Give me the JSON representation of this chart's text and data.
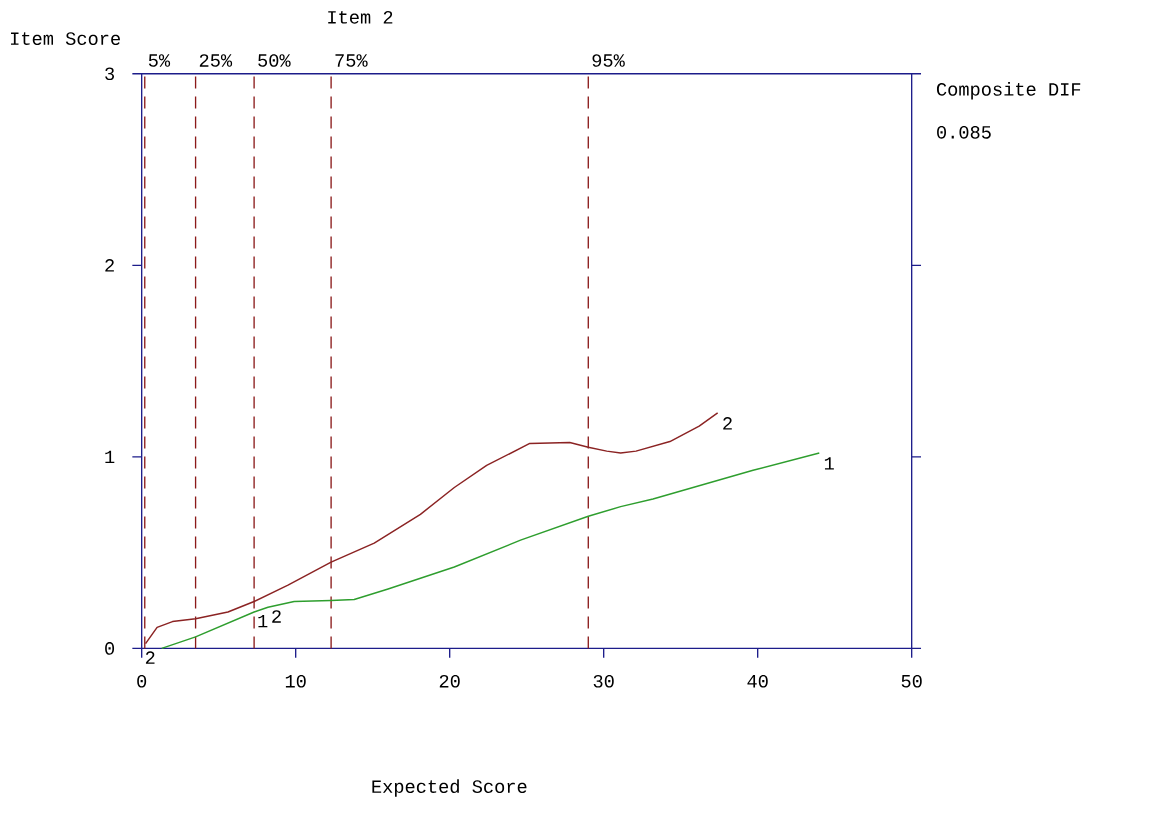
{
  "chart_data": {
    "type": "line",
    "title": "Item 2",
    "xlabel": "Expected Score",
    "ylabel": "Item Score",
    "xlim": [
      0,
      50
    ],
    "ylim": [
      0,
      3
    ],
    "xticks": [
      0,
      10,
      20,
      30,
      40,
      50
    ],
    "yticks": [
      0,
      1,
      2,
      3
    ],
    "grid": false,
    "marker": "none",
    "line_style": "solid",
    "series": [
      {
        "name": "1",
        "color": "#2e9e2e",
        "x": [
          1.3,
          3.5,
          7.3,
          8.2,
          9.9,
          12.3,
          13.8,
          16.0,
          20.3,
          24.6,
          29.0,
          31.1,
          33.2,
          39.7,
          44.0
        ],
        "values": [
          0,
          0.06,
          0.19,
          0.215,
          0.245,
          0.25,
          0.255,
          0.31,
          0.425,
          0.565,
          0.69,
          0.74,
          0.78,
          0.93,
          1.02
        ]
      },
      {
        "name": "2",
        "color": "#8b2323",
        "x": [
          0.25,
          1.0,
          2.0,
          3.5,
          5.6,
          7.3,
          9.5,
          12.3,
          15.1,
          18.1,
          20.3,
          22.4,
          25.2,
          27.8,
          29.0,
          30.2,
          31.1,
          32.1,
          34.3,
          36.2,
          37.4
        ],
        "values": [
          0.025,
          0.11,
          0.14,
          0.155,
          0.19,
          0.245,
          0.33,
          0.45,
          0.55,
          0.7,
          0.84,
          0.955,
          1.07,
          1.075,
          1.05,
          1.03,
          1.02,
          1.03,
          1.08,
          1.16,
          1.23
        ]
      }
    ],
    "ref_lines": [
      {
        "axis": "x",
        "value": 0.2,
        "color": "#8b1a1a",
        "line_style": "dashed"
      },
      {
        "axis": "x",
        "value": 3.5,
        "color": "#8b1a1a",
        "line_style": "dashed"
      },
      {
        "axis": "x",
        "value": 7.3,
        "color": "#8b1a1a",
        "line_style": "dashed"
      },
      {
        "axis": "x",
        "value": 12.3,
        "color": "#8b1a1a",
        "line_style": "dashed"
      },
      {
        "axis": "x",
        "value": 29.0,
        "color": "#8b1a1a",
        "line_style": "dashed"
      }
    ],
    "annotations": [
      {
        "text": "5%",
        "x": 0.2,
        "y": 3
      },
      {
        "text": "25%",
        "x": 3.5,
        "y": 3
      },
      {
        "text": "50%",
        "x": 7.3,
        "y": 3
      },
      {
        "text": "75%",
        "x": 12.3,
        "y": 3
      },
      {
        "text": "95%",
        "x": 29.0,
        "y": 3
      },
      "Composite DIF",
      "0.085",
      {
        "text": "2",
        "x": 0,
        "y": 0
      },
      {
        "text": "1",
        "x": 7.3,
        "y": 0.19
      },
      {
        "text": "2",
        "x": 8.2,
        "y": 0.215
      }
    ]
  }
}
